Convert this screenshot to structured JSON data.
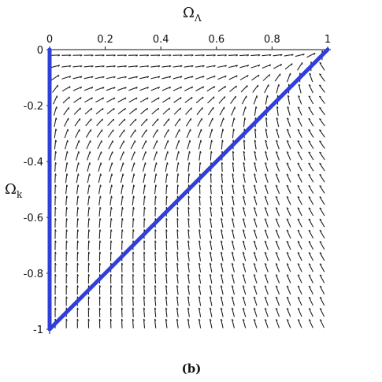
{
  "chart_data": {
    "type": "vector-field",
    "title": "",
    "caption": "(b)",
    "xlabel": "Ω",
    "xlabel_sub": "Λ",
    "ylabel": "Ω",
    "ylabel_sub": "k",
    "xlim": [
      0,
      1
    ],
    "ylim": [
      -1,
      0
    ],
    "x_axis_position": "top",
    "x_ticks": [
      0,
      0.2,
      0.4,
      0.6,
      0.8,
      1
    ],
    "x_tick_labels": [
      "0",
      "0.2",
      "0.4",
      "0.6",
      "0.8",
      "1"
    ],
    "y_ticks": [
      0,
      -0.2,
      -0.4,
      -0.6,
      -0.8,
      -1
    ],
    "y_tick_labels": [
      "0",
      "-0.2",
      "-0.4",
      "-0.6",
      "-0.8",
      "-1"
    ],
    "grid": false,
    "field_color": "#222222",
    "series": [
      {
        "type": "line",
        "color": "#2f3fd8",
        "x": [
          0,
          0
        ],
        "y": [
          0,
          -1
        ]
      },
      {
        "type": "line",
        "color": "#2f3fd8",
        "x": [
          0,
          1
        ],
        "y": [
          -1,
          0
        ]
      }
    ]
  }
}
